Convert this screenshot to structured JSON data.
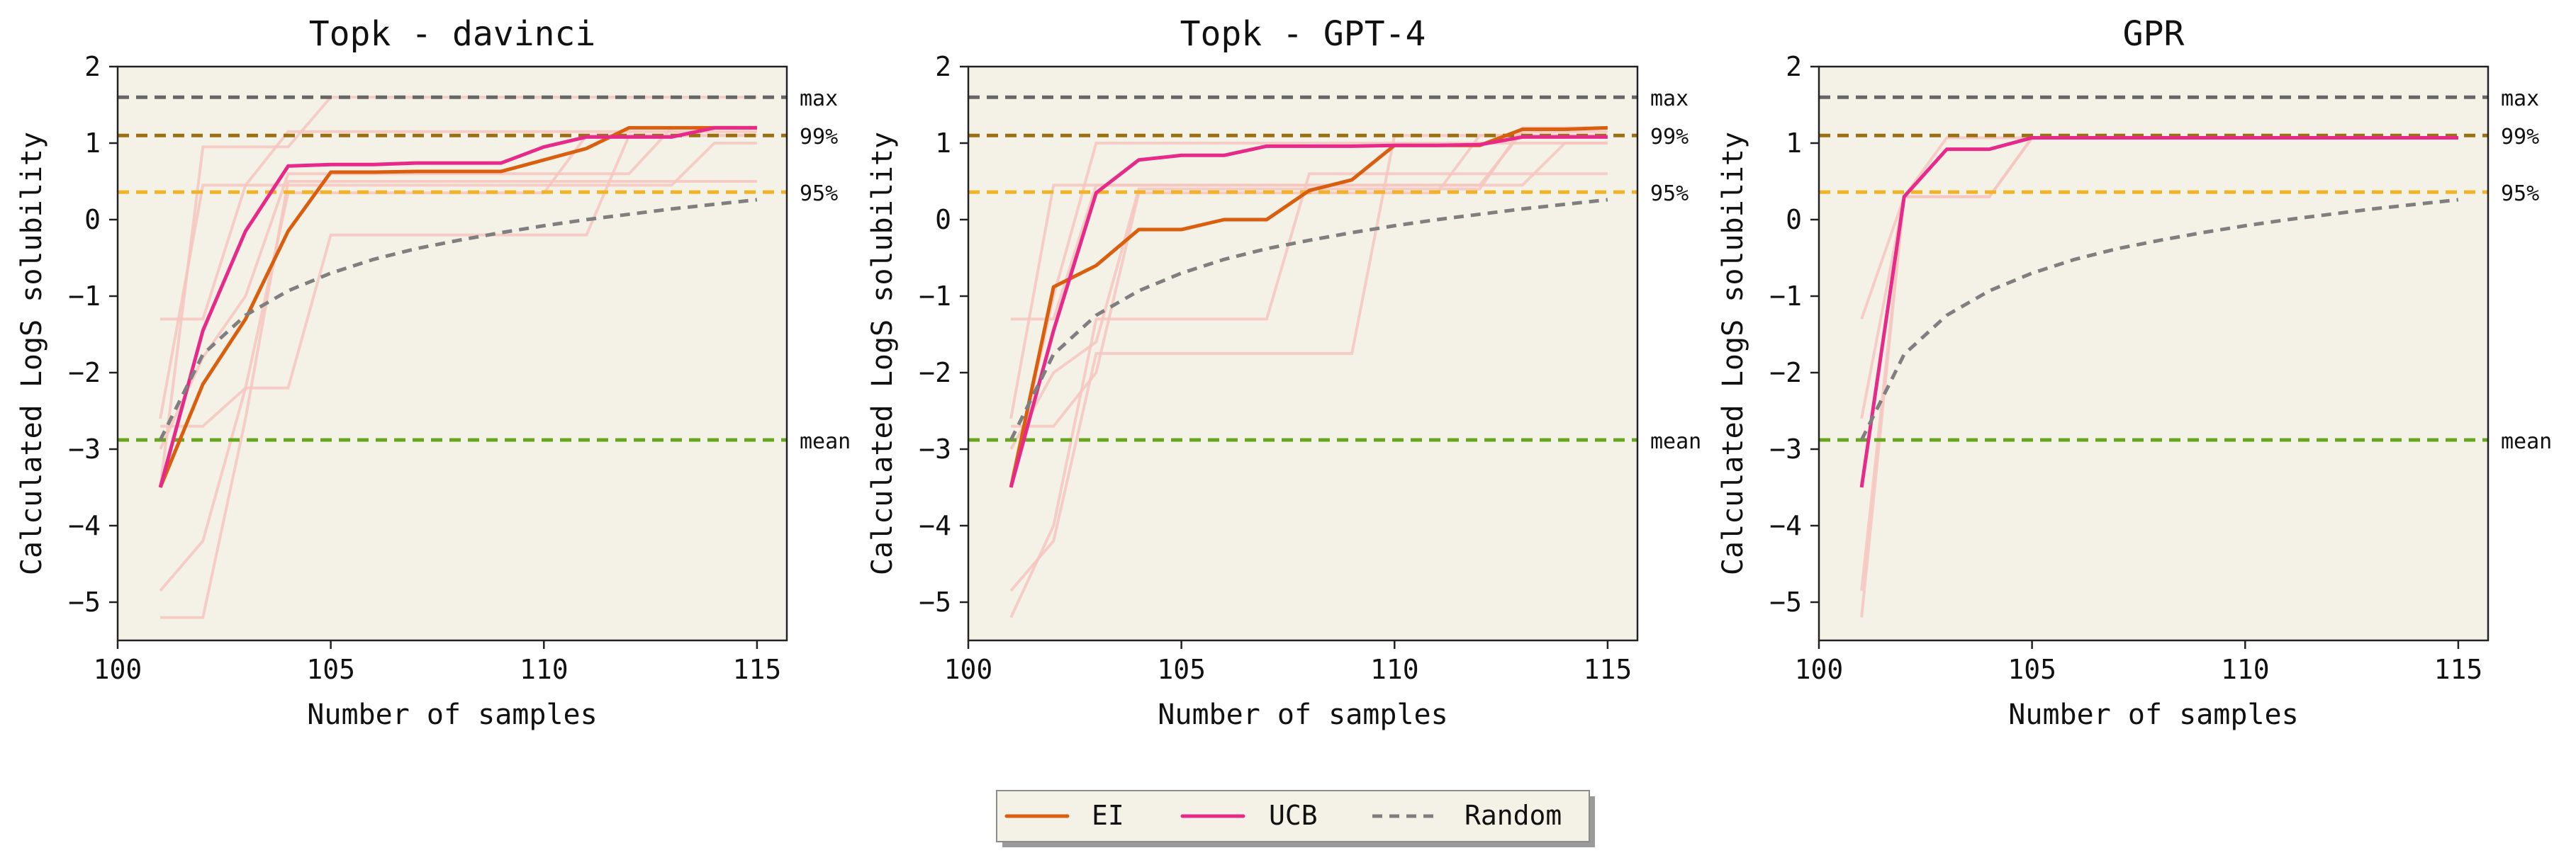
{
  "colors": {
    "plot_bg": "#f4f2e7",
    "ei": "#d95f0e",
    "ucb": "#e7298a",
    "random": "#7f7f7f",
    "max": "#666666",
    "p99": "#9c7012",
    "p95": "#f0b326",
    "mean": "#66a51e",
    "faint": "#f6c6c0"
  },
  "reference_lines": [
    {
      "label": "max",
      "y": 1.6
    },
    {
      "label": "99%",
      "y": 1.1
    },
    {
      "label": "95%",
      "y": 0.36
    },
    {
      "label": "mean",
      "y": -2.88
    }
  ],
  "legend": {
    "ei": "EI",
    "ucb": "UCB",
    "random": "Random"
  },
  "chart_data": [
    {
      "type": "line",
      "title": "Topk - davinci",
      "xlabel": "Number of samples",
      "ylabel": "Calculated LogS solubility",
      "xlim": [
        100,
        115.7
      ],
      "ylim": [
        -5.5,
        2
      ],
      "xticks": [
        100,
        105,
        110,
        115
      ],
      "yticks": [
        -5,
        -4,
        -3,
        -2,
        -1,
        0,
        1,
        2
      ],
      "grid": false,
      "x": [
        101,
        102,
        103,
        104,
        105,
        106,
        107,
        108,
        109,
        110,
        111,
        112,
        113,
        114,
        115
      ],
      "series": [
        {
          "name": "EI",
          "values": [
            -3.5,
            -2.15,
            -1.3,
            -0.15,
            0.62,
            0.62,
            0.63,
            0.63,
            0.63,
            0.78,
            0.93,
            1.2,
            1.2,
            1.2,
            1.2
          ]
        },
        {
          "name": "UCB",
          "values": [
            -3.5,
            -1.45,
            -0.15,
            0.7,
            0.72,
            0.72,
            0.74,
            0.74,
            0.74,
            0.95,
            1.08,
            1.08,
            1.08,
            1.2,
            1.2
          ]
        },
        {
          "name": "Random",
          "values": [
            -2.88,
            -1.76,
            -1.25,
            -0.93,
            -0.7,
            -0.52,
            -0.38,
            -0.27,
            -0.17,
            -0.08,
            0.0,
            0.07,
            0.14,
            0.2,
            0.26
          ]
        }
      ],
      "faint_runs": [
        [
          -1.3,
          -1.3,
          0.45,
          0.45,
          0.45,
          0.45,
          0.45,
          0.45,
          0.45,
          0.45,
          0.45,
          0.45,
          0.45,
          1.0,
          1.0
        ],
        [
          -2.6,
          0.45,
          0.45,
          1.15,
          1.15,
          1.15,
          1.15,
          1.15,
          1.15,
          1.15,
          1.15,
          1.15,
          1.15,
          1.15,
          1.15
        ],
        [
          -3.5,
          0.95,
          0.95,
          0.95,
          1.6,
          1.6,
          1.6,
          1.6,
          1.6,
          1.6,
          1.6,
          1.6,
          1.6,
          1.6,
          1.6
        ],
        [
          -4.85,
          -4.2,
          -2.2,
          -2.2,
          -0.2,
          -0.2,
          -0.2,
          -0.2,
          -0.2,
          -0.2,
          -0.2,
          1.1,
          1.1,
          1.1,
          1.1
        ],
        [
          -5.2,
          -5.2,
          -2.6,
          0.5,
          0.5,
          0.5,
          0.5,
          0.5,
          0.5,
          0.5,
          0.5,
          0.5,
          0.5,
          0.5,
          0.5
        ],
        [
          -2.7,
          -2.7,
          -2.2,
          0.35,
          0.35,
          0.35,
          0.35,
          0.35,
          0.35,
          0.35,
          1.1,
          1.1,
          1.1,
          1.1,
          1.1
        ],
        [
          -3.0,
          -1.8,
          -1.0,
          0.6,
          0.6,
          0.6,
          0.6,
          0.6,
          0.6,
          0.6,
          0.6,
          0.6,
          1.2,
          1.2,
          1.2
        ]
      ]
    },
    {
      "type": "line",
      "title": "Topk - GPT-4",
      "xlabel": "Number of samples",
      "ylabel": "Calculated LogS solubility",
      "xlim": [
        100,
        115.7
      ],
      "ylim": [
        -5.5,
        2
      ],
      "xticks": [
        100,
        105,
        110,
        115
      ],
      "yticks": [
        -5,
        -4,
        -3,
        -2,
        -1,
        0,
        1,
        2
      ],
      "grid": false,
      "x": [
        101,
        102,
        103,
        104,
        105,
        106,
        107,
        108,
        109,
        110,
        111,
        112,
        113,
        114,
        115
      ],
      "series": [
        {
          "name": "EI",
          "values": [
            -3.5,
            -0.88,
            -0.6,
            -0.13,
            -0.13,
            0.0,
            0.0,
            0.38,
            0.52,
            0.97,
            0.97,
            0.97,
            1.18,
            1.18,
            1.2
          ]
        },
        {
          "name": "UCB",
          "values": [
            -3.5,
            -1.45,
            0.35,
            0.78,
            0.84,
            0.84,
            0.96,
            0.96,
            0.96,
            0.97,
            0.97,
            0.98,
            1.08,
            1.08,
            1.08
          ]
        },
        {
          "name": "Random",
          "values": [
            -2.88,
            -1.76,
            -1.25,
            -0.93,
            -0.7,
            -0.52,
            -0.38,
            -0.27,
            -0.17,
            -0.08,
            0.0,
            0.07,
            0.14,
            0.2,
            0.26
          ]
        }
      ],
      "faint_runs": [
        [
          -1.3,
          -1.3,
          0.45,
          0.45,
          0.45,
          0.45,
          0.45,
          0.45,
          0.45,
          0.45,
          0.45,
          0.45,
          0.45,
          1.0,
          1.0
        ],
        [
          -2.6,
          0.45,
          0.45,
          0.45,
          0.45,
          0.45,
          0.45,
          0.45,
          0.45,
          0.45,
          0.45,
          0.45,
          1.15,
          1.15,
          1.15
        ],
        [
          -3.5,
          -1.0,
          1.0,
          1.0,
          1.0,
          1.0,
          1.0,
          1.0,
          1.0,
          1.0,
          1.0,
          1.0,
          1.0,
          1.0,
          1.0
        ],
        [
          -4.85,
          -4.2,
          -1.75,
          -1.75,
          -1.75,
          -1.75,
          -1.75,
          -1.75,
          -1.75,
          1.1,
          1.1,
          1.1,
          1.1,
          1.1,
          1.1
        ],
        [
          -5.2,
          -4.0,
          -1.3,
          -1.3,
          -1.3,
          -1.3,
          -1.3,
          0.6,
          0.6,
          0.6,
          0.6,
          0.6,
          0.6,
          0.6,
          0.6
        ],
        [
          -2.7,
          -2.7,
          -2.0,
          0.35,
          0.35,
          0.35,
          0.35,
          0.35,
          0.35,
          0.35,
          0.35,
          1.1,
          1.1,
          1.1,
          1.1
        ],
        [
          -3.0,
          -2.0,
          -1.6,
          0.4,
          0.4,
          0.4,
          0.4,
          0.4,
          0.4,
          0.4,
          0.4,
          0.4,
          1.2,
          1.2,
          1.2
        ]
      ]
    },
    {
      "type": "line",
      "title": "GPR",
      "xlabel": "Number of samples",
      "ylabel": "Calculated LogS solubility",
      "xlim": [
        100,
        115.7
      ],
      "ylim": [
        -5.5,
        2
      ],
      "xticks": [
        100,
        105,
        110,
        115
      ],
      "yticks": [
        -5,
        -4,
        -3,
        -2,
        -1,
        0,
        1,
        2
      ],
      "grid": false,
      "x": [
        101,
        102,
        103,
        104,
        105,
        106,
        107,
        108,
        109,
        110,
        111,
        112,
        113,
        114,
        115
      ],
      "series": [
        {
          "name": "UCB",
          "values": [
            -3.5,
            0.3,
            0.92,
            0.92,
            1.07,
            1.07,
            1.07,
            1.07,
            1.07,
            1.07,
            1.07,
            1.07,
            1.07,
            1.07,
            1.07
          ]
        },
        {
          "name": "Random",
          "values": [
            -2.88,
            -1.76,
            -1.25,
            -0.93,
            -0.7,
            -0.52,
            -0.38,
            -0.27,
            -0.17,
            -0.08,
            0.0,
            0.07,
            0.14,
            0.2,
            0.26
          ]
        }
      ],
      "faint_runs": [
        [
          -1.3,
          0.3,
          0.3,
          0.3,
          1.07,
          1.07,
          1.07,
          1.07,
          1.07,
          1.07,
          1.07,
          1.07,
          1.07,
          1.07,
          1.07
        ],
        [
          -2.6,
          0.3,
          0.3,
          0.3,
          1.07,
          1.07,
          1.07,
          1.07,
          1.07,
          1.07,
          1.07,
          1.07,
          1.07,
          1.07,
          1.07
        ],
        [
          -4.85,
          0.3,
          1.07,
          1.07,
          1.07,
          1.07,
          1.07,
          1.07,
          1.07,
          1.07,
          1.07,
          1.07,
          1.07,
          1.07,
          1.07
        ],
        [
          -5.2,
          0.3,
          0.3,
          0.3,
          1.07,
          1.07,
          1.07,
          1.07,
          1.07,
          1.07,
          1.07,
          1.07,
          1.07,
          1.07,
          1.07
        ]
      ]
    }
  ]
}
